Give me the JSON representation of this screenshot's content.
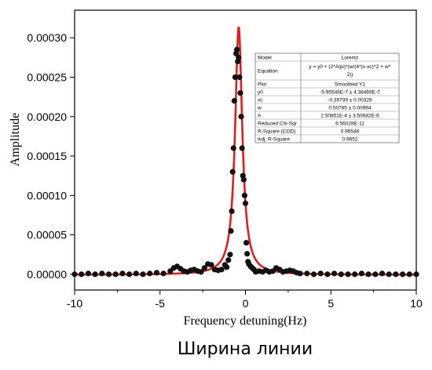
{
  "caption": "Ширина линии",
  "chart_data": {
    "type": "scatter",
    "title": "",
    "xlabel": "Frequency detuning(Hz)",
    "ylabel": "Amplitude",
    "xlim": [
      -10,
      10
    ],
    "ylim": [
      -2e-05,
      0.000335
    ],
    "x_ticks": [
      -10,
      -5,
      0,
      5,
      10
    ],
    "x_tick_labels": [
      "-10",
      "-5",
      "0",
      "5",
      "10"
    ],
    "y_ticks": [
      0,
      5e-05,
      0.0001,
      0.00015,
      0.0002,
      0.00025,
      0.0003
    ],
    "y_tick_labels": [
      "0.00000",
      "0.00005",
      "0.00010",
      "0.00015",
      "0.00020",
      "0.00025",
      "0.00030"
    ],
    "grid": false,
    "series": [
      {
        "kind": "scatter",
        "color": "#111111",
        "x": [
          -10.0,
          -9.6,
          -9.2,
          -8.8,
          -8.4,
          -8.0,
          -7.6,
          -7.2,
          -6.8,
          -6.4,
          -6.0,
          -5.6,
          -5.2,
          -4.8,
          -4.4,
          -4.2,
          -4.0,
          -3.8,
          -3.6,
          -3.4,
          -3.2,
          -3.0,
          -2.8,
          -2.6,
          -2.4,
          -2.2,
          -2.0,
          -1.8,
          -1.6,
          -1.4,
          -1.2,
          -1.1,
          -1.0,
          -0.9,
          -0.85,
          -0.8,
          -0.75,
          -0.7,
          -0.65,
          -0.6,
          -0.55,
          -0.5,
          -0.45,
          -0.4,
          -0.35,
          -0.3,
          -0.25,
          -0.2,
          -0.15,
          -0.1,
          -0.05,
          0.0,
          0.05,
          0.1,
          0.15,
          0.2,
          0.3,
          0.4,
          0.5,
          0.6,
          0.8,
          1.0,
          1.2,
          1.4,
          1.6,
          1.8,
          2.0,
          2.2,
          2.4,
          2.6,
          2.8,
          3.0,
          3.2,
          3.6,
          4.0,
          4.4,
          4.8,
          5.2,
          5.6,
          6.0,
          6.4,
          6.8,
          7.2,
          7.6,
          8.0,
          8.4,
          8.8,
          9.2,
          9.6,
          10.0
        ],
        "y": [
          0.0,
          0.0,
          1e-06,
          0.0,
          1e-06,
          0.0,
          0.0,
          1e-06,
          0.0,
          1e-06,
          0.0,
          1e-06,
          2e-06,
          1e-06,
          4e-06,
          8e-06,
          1e-05,
          7e-06,
          4e-06,
          3e-06,
          5e-06,
          6e-06,
          4e-06,
          3e-06,
          8e-06,
          1.3e-05,
          1.2e-05,
          6e-06,
          5e-06,
          6e-06,
          1.2e-05,
          9e-06,
          1.8e-05,
          2.5e-05,
          5.5e-05,
          8e-05,
          0.00013,
          0.00016,
          0.00022,
          0.00025,
          0.00028,
          0.000285,
          0.00027,
          0.000275,
          0.00025,
          0.00023,
          0.0002,
          0.00016,
          0.000125,
          0.00012,
          0.0001,
          9e-05,
          4e-05,
          2.6e-05,
          1.6e-05,
          1.3e-05,
          1e-05,
          8e-06,
          6e-06,
          3e-06,
          4e-06,
          3e-06,
          5e-06,
          3e-06,
          4e-06,
          8e-06,
          6e-06,
          3e-06,
          4e-06,
          5e-06,
          4e-06,
          2e-06,
          1e-06,
          1e-06,
          0.0,
          1e-06,
          0.0,
          1e-06,
          0.0,
          0.0,
          0.0,
          1e-06,
          0.0,
          0.0,
          1e-06,
          0.0,
          0.0,
          0.0,
          0.0,
          0.0
        ]
      },
      {
        "kind": "line",
        "color": "#e0201c",
        "model": "lorentz",
        "y0": -5.95546e-07,
        "xc": -0.39739,
        "w": 0.50785,
        "A": 0.000250851
      }
    ],
    "annotation_table": {
      "rows": [
        [
          "Model",
          "Lorentz"
        ],
        [
          "Equation",
          "y = y0 + (2*A/pi)*(w/(4*(x-xc)^2 + w^2))"
        ],
        [
          "Plot",
          "Smoothed Y1"
        ],
        [
          "y0",
          "-5.95546E-7 ± 4.38469E-7"
        ],
        [
          "xc",
          "-0.39739 ± 0.00328"
        ],
        [
          "w",
          "0.50785 ± 0.00964"
        ],
        [
          "A",
          "2.50851E-4 ± 3.50682E-6"
        ],
        [
          "Reduced Chi-Sqr",
          "6.56028E-11"
        ],
        [
          "R-Square (COD)",
          "0.96546"
        ],
        [
          "Adj. R-Square",
          "0.9652"
        ]
      ]
    }
  }
}
